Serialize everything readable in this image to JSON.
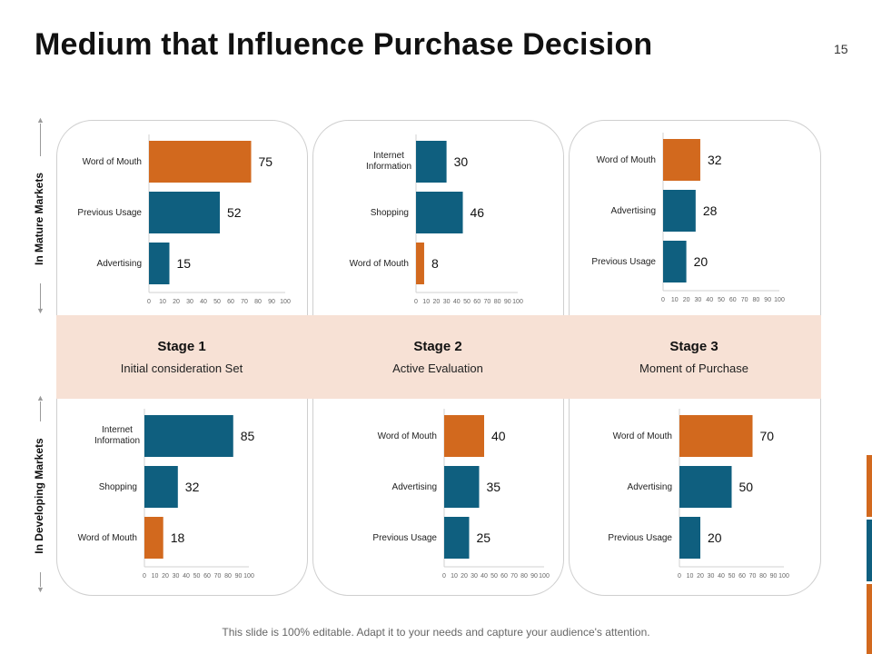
{
  "page": {
    "title": "Medium that Influence Purchase Decision",
    "page_number": "15",
    "footer": "This slide is 100% editable. Adapt it to your needs and capture your audience's attention.",
    "side_labels": {
      "mature": "In Mature Markets",
      "developing": "In Developing Markets"
    }
  },
  "stages": [
    {
      "name": "Stage 1",
      "description": "Initial consideration Set"
    },
    {
      "name": "Stage 2",
      "description": "Active Evaluation"
    },
    {
      "name": "Stage 3",
      "description": "Moment of Purchase"
    }
  ],
  "colors": {
    "orange": "#d2691e",
    "blue": "#0f5f7f",
    "band": "#f7e1d5",
    "grid": "#cccccc"
  },
  "chart_data": [
    {
      "type": "bar",
      "orientation": "horizontal",
      "market": "In Mature Markets",
      "stage": "Stage 1",
      "categories": [
        "Word of Mouth",
        "Previous Usage",
        "Advertising"
      ],
      "values": [
        75,
        52,
        15
      ],
      "colors": [
        "orange",
        "blue",
        "blue"
      ],
      "xlim": [
        0,
        100
      ],
      "ticks": [
        0,
        10,
        20,
        30,
        40,
        50,
        60,
        70,
        80,
        90,
        100
      ]
    },
    {
      "type": "bar",
      "orientation": "horizontal",
      "market": "In Mature Markets",
      "stage": "Stage 2",
      "categories": [
        "Internet Information",
        "Shopping",
        "Word of Mouth"
      ],
      "values": [
        30,
        46,
        8
      ],
      "colors": [
        "blue",
        "blue",
        "orange"
      ],
      "xlim": [
        0,
        100
      ],
      "ticks": [
        0,
        10,
        20,
        30,
        40,
        50,
        60,
        70,
        80,
        90,
        100
      ]
    },
    {
      "type": "bar",
      "orientation": "horizontal",
      "market": "In Mature Markets",
      "stage": "Stage 3",
      "categories": [
        "Word of Mouth",
        "Advertising",
        "Previous Usage"
      ],
      "values": [
        32,
        28,
        20
      ],
      "colors": [
        "orange",
        "blue",
        "blue"
      ],
      "xlim": [
        0,
        100
      ],
      "ticks": [
        0,
        10,
        20,
        30,
        40,
        50,
        60,
        70,
        80,
        90,
        100
      ]
    },
    {
      "type": "bar",
      "orientation": "horizontal",
      "market": "In Developing Markets",
      "stage": "Stage 1",
      "categories": [
        "Internet Information",
        "Shopping",
        "Word of Mouth"
      ],
      "values": [
        85,
        32,
        18
      ],
      "colors": [
        "blue",
        "blue",
        "orange"
      ],
      "xlim": [
        0,
        100
      ],
      "ticks": [
        0,
        10,
        20,
        30,
        40,
        50,
        60,
        70,
        80,
        90,
        100
      ]
    },
    {
      "type": "bar",
      "orientation": "horizontal",
      "market": "In Developing Markets",
      "stage": "Stage 2",
      "categories": [
        "Word of Mouth",
        "Advertising",
        "Previous Usage"
      ],
      "values": [
        40,
        35,
        25
      ],
      "colors": [
        "orange",
        "blue",
        "blue"
      ],
      "xlim": [
        0,
        100
      ],
      "ticks": [
        0,
        10,
        20,
        30,
        40,
        50,
        60,
        70,
        80,
        90,
        100
      ]
    },
    {
      "type": "bar",
      "orientation": "horizontal",
      "market": "In Developing Markets",
      "stage": "Stage 3",
      "categories": [
        "Word of Mouth",
        "Advertising",
        "Previous Usage"
      ],
      "values": [
        70,
        50,
        20
      ],
      "colors": [
        "orange",
        "blue",
        "blue"
      ],
      "xlim": [
        0,
        100
      ],
      "ticks": [
        0,
        10,
        20,
        30,
        40,
        50,
        60,
        70,
        80,
        90,
        100
      ]
    }
  ]
}
